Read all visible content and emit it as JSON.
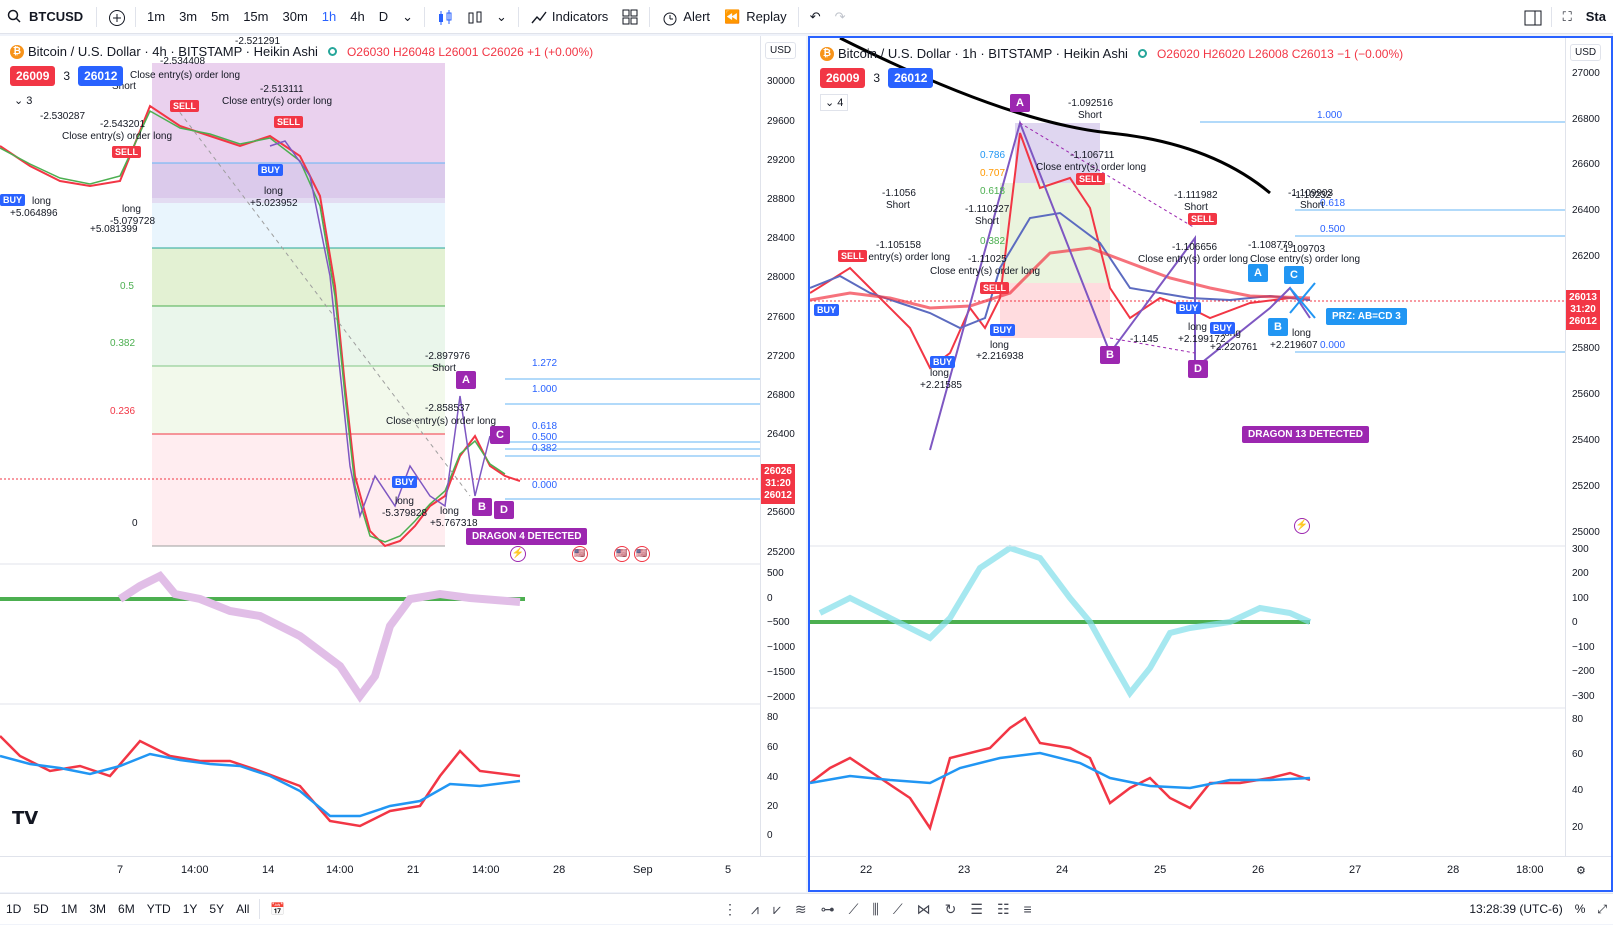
{
  "toolbar": {
    "symbol": "BTCUSD",
    "intervals": [
      "1m",
      "3m",
      "5m",
      "15m",
      "30m",
      "1h",
      "4h",
      "D"
    ],
    "active_interval": "1h",
    "indicators_label": "Indicators",
    "alert_label": "Alert",
    "replay_label": "Replay",
    "right_text": "Sta"
  },
  "left_chart": {
    "title": "Bitcoin / U.S. Dollar · 4h · BITSTAMP · Heikin Ashi",
    "ohlc": "O26030 H26048 L26001 C26026 +1 (+0.00%)",
    "bid": "26009",
    "spread": "3",
    "ask": "26012",
    "indicator_count": "3",
    "currency": "USD",
    "price_labels": [
      "30000",
      "29600",
      "29200",
      "28800",
      "28400",
      "28000",
      "27600",
      "27200",
      "26800",
      "26400",
      "26000",
      "25600",
      "25200"
    ],
    "osc_labels": [
      "500",
      "0",
      "−500",
      "−1000",
      "−1500",
      "−2000"
    ],
    "rsi_labels": [
      "80",
      "60",
      "40",
      "20",
      "0"
    ],
    "time_labels": [
      "7",
      "14:00",
      "14",
      "14:00",
      "21",
      "14:00",
      "28",
      "Sep",
      "5"
    ],
    "fib_labels": [
      "0.5",
      "0.382",
      "0.236",
      "0"
    ],
    "fib_right": [
      "1.272",
      "1.000",
      "0.618",
      "0.500",
      "0.382",
      "0.000"
    ],
    "current_price": [
      "26026",
      "31:20",
      "26012"
    ],
    "dragon_label": "DRAGON 4 DETECTED",
    "trade_texts": [
      "-2.534408",
      "-2.513111",
      "Close entry(s) order long",
      "Close entry(s) order long",
      "long",
      "+5.023952",
      "-2.897976",
      "Short",
      "-2.858537",
      "Close entry(s) order long",
      "long",
      "-5.379828",
      "long",
      "+5.767318",
      "-2.543201",
      "-2.530287",
      "Close entry(s) order long",
      "long",
      "+5.064896",
      "long",
      "-5.079728",
      "+5.081399",
      "-2.521291",
      "Short"
    ],
    "pattern_letters": [
      "A",
      "B",
      "C",
      "D"
    ],
    "buy": "BUY",
    "sell": "SELL",
    "logo": "TV"
  },
  "right_chart": {
    "title": "Bitcoin / U.S. Dollar · 1h · BITSTAMP · Heikin Ashi",
    "ohlc": "O26020 H26020 L26008 C26013 −1 (−0.00%)",
    "bid": "26009",
    "spread": "3",
    "ask": "26012",
    "indicator_count": "4",
    "currency": "USD",
    "price_labels": [
      "27000",
      "26800",
      "26600",
      "26400",
      "26200",
      "26000",
      "25800",
      "25600",
      "25400",
      "25200",
      "25000"
    ],
    "osc_labels": [
      "300",
      "200",
      "100",
      "0",
      "−100",
      "−200",
      "−300"
    ],
    "rsi_labels": [
      "80",
      "60",
      "40",
      "20"
    ],
    "time_labels": [
      "22",
      "23",
      "24",
      "25",
      "26",
      "27",
      "28",
      "18:00"
    ],
    "fib_left": [
      "0.786",
      "0.707",
      "0.618",
      "0.382"
    ],
    "fib_right": [
      "1.000",
      "0.618",
      "0.500",
      "0.000"
    ],
    "current_price": [
      "26013",
      "31:20",
      "26012"
    ],
    "dragon_label": "DRAGON 13 DETECTED",
    "prz_label": "PRZ: AB=CD 3",
    "trade_texts": [
      "-1.1056",
      "Short",
      "-1.105158",
      "Close entry(s) order long",
      "-1.110227",
      "Short",
      "-1.11025",
      "Close entry(s) order long",
      "long",
      "+2.216938",
      "long",
      "+2.21585",
      "-1.092516",
      "Short",
      "-1.106711",
      "Close entry(s) order long",
      "-1.111982",
      "Short",
      "-1.106656",
      "Close entry(s) order long",
      "long",
      "+2.199172",
      "long",
      "+2.220761",
      "-1.109903",
      "Short",
      "-1.108779",
      "Close entry(s) order long",
      "-1.109703",
      "long",
      "+2.219607",
      "-1.145",
      "-1.10232"
    ],
    "pattern_letters": [
      "A",
      "B",
      "D",
      "A",
      "B",
      "C"
    ],
    "buy": "BUY",
    "sell": "SELL"
  },
  "bottom": {
    "ranges": [
      "1D",
      "5D",
      "1M",
      "3M",
      "6M",
      "YTD",
      "1Y",
      "5Y",
      "All"
    ],
    "clock": "13:28:39 (UTC-6)"
  },
  "colors": {
    "red": "#f23645",
    "blue": "#2962ff",
    "purple": "#9c27b0",
    "green": "#4caf50",
    "teal": "#26a69a"
  }
}
